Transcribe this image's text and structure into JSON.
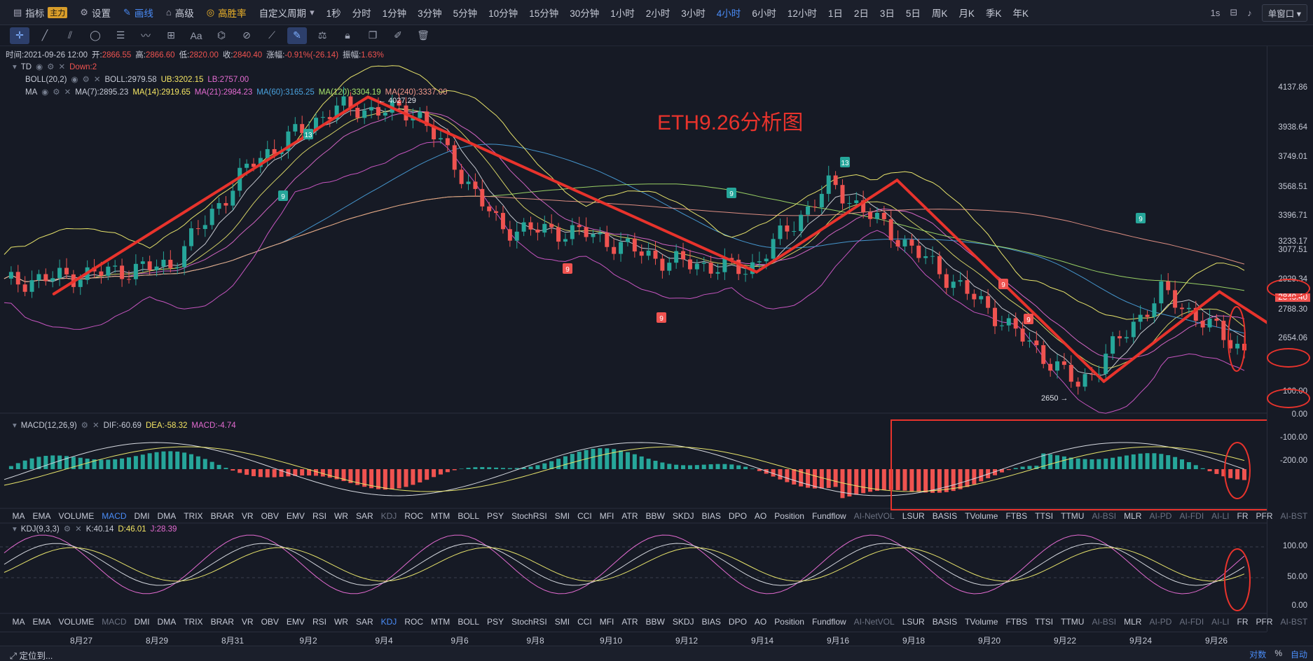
{
  "toolbar": {
    "indicator": "指标",
    "indicator_badge": "主力",
    "settings": "设置",
    "draw": "画线",
    "advanced": "高级",
    "winrate": "高胜率",
    "custom_period": "自定义周期",
    "periods": [
      "1秒",
      "分时",
      "1分钟",
      "3分钟",
      "5分钟",
      "10分钟",
      "15分钟",
      "30分钟",
      "1小时",
      "2小时",
      "3小时",
      "4小时",
      "6小时",
      "12小时",
      "1日",
      "2日",
      "3日",
      "5日",
      "周K",
      "月K",
      "季K",
      "年K"
    ],
    "active_period": "4小时",
    "interval_right": "1s",
    "window_mode": "单窗口"
  },
  "ohlc": {
    "time_label": "时间:2021-09-26 12:00",
    "open_label": "开:",
    "open": "2866.55",
    "high_label": "高:",
    "high": "2866.60",
    "low_label": "低:",
    "low": "2820.00",
    "close_label": "收:",
    "close": "2840.40",
    "change_label": "涨幅:",
    "change": "-0.91%(-26.14)",
    "amp_label": "振幅:",
    "amp": "1.63%"
  },
  "td": {
    "name": "TD",
    "down": "Down:2"
  },
  "boll": {
    "name": "BOLL(20,2)",
    "mid": "BOLL:2979.58",
    "ub": "UB:3202.15",
    "lb": "LB:2757.00"
  },
  "ma": {
    "name": "MA",
    "ma7": "MA(7):2895.23",
    "ma14": "MA(14):2919.65",
    "ma21": "MA(21):2984.23",
    "ma60": "MA(60):3165.25",
    "ma120": "MA(120):3304.19",
    "ma240": "MA(240):3337.00"
  },
  "annotation_title": "ETH9.26分析图",
  "high_marker": "← 4027.29",
  "low_marker": "2650 →",
  "td_marks": [
    "13",
    "9",
    "9",
    "9",
    "13",
    "9",
    "9",
    "9",
    "9"
  ],
  "price_axis": [
    "4137.86",
    "3938.64",
    "3749.01",
    "3568.51",
    "3396.71",
    "3233.17",
    "3077.51",
    "2929.34",
    "2840.40",
    "2788.30",
    "2654.06"
  ],
  "current_price": "2840.40",
  "macd": {
    "name": "MACD(12,26,9)",
    "dif": "DIF:-60.69",
    "dea": "DEA:-58.32",
    "macd": "MACD:-4.74",
    "axis": [
      "100.00",
      "0.00",
      "-100.00",
      "-200.00"
    ]
  },
  "kdj": {
    "name": "KDJ(9,3,3)",
    "k": "K:40.14",
    "d": "D:46.01",
    "j": "J:28.39",
    "axis": [
      "100.00",
      "50.00",
      "0.00"
    ]
  },
  "indicator_tabs": [
    "MA",
    "EMA",
    "VOLUME",
    "MACD",
    "DMI",
    "DMA",
    "TRIX",
    "BRAR",
    "VR",
    "OBV",
    "EMV",
    "RSI",
    "WR",
    "SAR",
    "KDJ",
    "ROC",
    "MTM",
    "BOLL",
    "PSY",
    "StochRSI",
    "SMI",
    "CCI",
    "MFI",
    "ATR",
    "BBW",
    "SKDJ",
    "BIAS",
    "DPO",
    "AO",
    "Position",
    "Fundflow",
    "AI-NetVOL",
    "LSUR",
    "BASIS",
    "TVolume",
    "FTBS",
    "TTSI",
    "TTMU",
    "AI-BSI",
    "MLR",
    "AI-PD",
    "AI-FDI",
    "AI-LI",
    "FR",
    "PFR",
    "AI-BST"
  ],
  "dates": [
    "8月27",
    "8月29",
    "8月31",
    "9月2",
    "9月4",
    "9月6",
    "9月8",
    "9月10",
    "9月12",
    "9月14",
    "9月16",
    "9月18",
    "9月20",
    "9月22",
    "9月24",
    "9月26"
  ],
  "bottom": {
    "locate": "定位到...",
    "log": "对数",
    "pct": "%",
    "auto": "自动"
  },
  "colors": {
    "up": "#26a69a",
    "down": "#ef5350",
    "accent": "#4a8cf7",
    "annotation": "#e8332c",
    "boll": "#e7e36b",
    "ma_blue": "#4aa3df",
    "ma_pink": "#e36bd1"
  },
  "chart_data": {
    "type": "candlestick",
    "title": "ETH9.26分析图",
    "x": [
      "8月27",
      "8月29",
      "8月31",
      "9月2",
      "9月4",
      "9月6",
      "9月8",
      "9月10",
      "9月12",
      "9月14",
      "9月16",
      "9月18",
      "9月20",
      "9月22",
      "9月24",
      "9月26"
    ],
    "close": [
      3150,
      3190,
      3230,
      3700,
      3950,
      3930,
      3400,
      3380,
      3250,
      3210,
      3600,
      3300,
      3000,
      2680,
      3110,
      2840
    ],
    "ylim": [
      2600,
      4200
    ],
    "trend_lines": [
      [
        3100,
        4000
      ],
      [
        4000,
        3200
      ],
      [
        3200,
        3620
      ],
      [
        3620,
        2700
      ],
      [
        2700,
        3110
      ],
      [
        3110,
        2840
      ]
    ]
  }
}
